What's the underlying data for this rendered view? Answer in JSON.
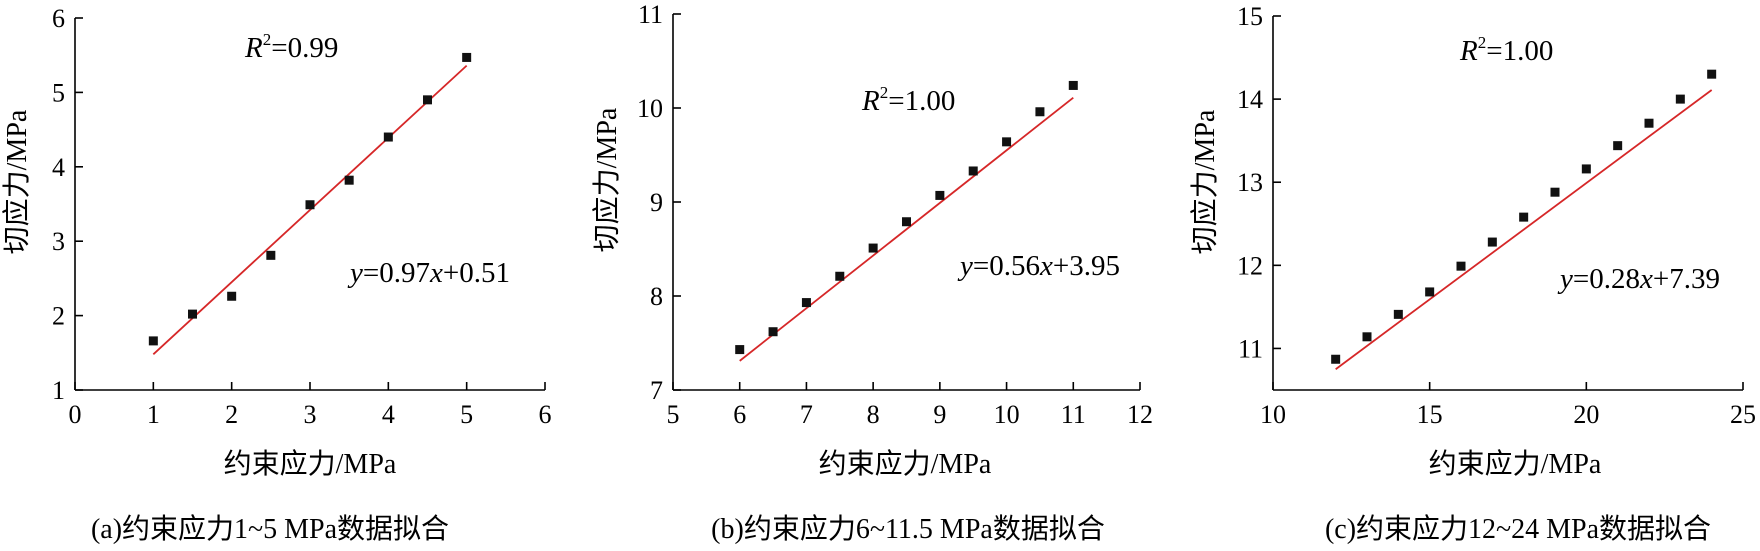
{
  "chart_data": [
    {
      "type": "scatter",
      "caption": "(a)约束应力1~5 MPa数据拟合",
      "xlabel": "约束应力/MPa",
      "ylabel": "切应力/MPa",
      "xlim": [
        0,
        6
      ],
      "ylim": [
        1,
        6
      ],
      "xticks": [
        "0",
        "1",
        "2",
        "3",
        "4",
        "5",
        "6"
      ],
      "yticks": [
        "1",
        "2",
        "3",
        "4",
        "5",
        "6"
      ],
      "x": [
        1,
        1.5,
        2,
        2.5,
        3,
        3.5,
        4,
        4.5,
        5
      ],
      "y": [
        1.66,
        2.02,
        2.26,
        2.81,
        3.49,
        3.82,
        4.4,
        4.9,
        5.47
      ],
      "fit": {
        "slope": 0.97,
        "intercept": 0.51,
        "x_range": [
          1,
          5
        ],
        "color": "#d62728"
      },
      "r2_prefix": "R",
      "r2_sup": "2",
      "r2_value": "=0.99",
      "eq_y": "y",
      "eq_mid": "=0.97",
      "eq_x": "x",
      "eq_tail": "+0.51",
      "grid": false
    },
    {
      "type": "scatter",
      "caption": "(b)约束应力6~11.5 MPa数据拟合",
      "xlabel": "约束应力/MPa",
      "ylabel": "切应力/MPa",
      "xlim": [
        5,
        12
      ],
      "ylim": [
        7,
        11
      ],
      "xticks": [
        "5",
        "6",
        "7",
        "8",
        "9",
        "10",
        "11",
        "12"
      ],
      "yticks": [
        "7",
        "8",
        "9",
        "10",
        "11"
      ],
      "x": [
        6,
        6.5,
        7,
        7.5,
        8,
        8.5,
        9,
        9.5,
        10,
        10.5,
        11
      ],
      "y": [
        7.43,
        7.62,
        7.93,
        8.21,
        8.51,
        8.79,
        9.07,
        9.33,
        9.64,
        9.96,
        10.24
      ],
      "fit": {
        "slope": 0.56,
        "intercept": 3.95,
        "x_range": [
          6,
          11
        ],
        "color": "#d62728"
      },
      "r2_prefix": "R",
      "r2_sup": "2",
      "r2_value": "=1.00",
      "eq_y": "y",
      "eq_mid": "=0.56",
      "eq_x": "x",
      "eq_tail": "+3.95",
      "grid": false
    },
    {
      "type": "scatter",
      "caption": "(c)约束应力12~24 MPa数据拟合",
      "xlabel": "约束应力/MPa",
      "ylabel": "切应力/MPa",
      "xlim": [
        10,
        25
      ],
      "ylim": [
        10.5,
        15
      ],
      "xticks": [
        "10",
        "15",
        "20",
        "25"
      ],
      "yticks": [
        "11",
        "12",
        "13",
        "14",
        "15"
      ],
      "x": [
        12,
        13,
        14,
        15,
        16,
        17,
        18,
        19,
        20,
        21,
        22,
        23,
        24
      ],
      "y": [
        10.87,
        11.14,
        11.41,
        11.68,
        11.99,
        12.28,
        12.58,
        12.88,
        13.16,
        13.44,
        13.71,
        14.0,
        14.3
      ],
      "fit": {
        "slope": 0.28,
        "intercept": 7.39,
        "x_range": [
          12,
          24
        ],
        "color": "#d62728"
      },
      "r2_prefix": "R",
      "r2_sup": "2",
      "r2_value": "=1.00",
      "eq_y": "y",
      "eq_mid": "=0.28",
      "eq_x": "x",
      "eq_tail": "+7.39",
      "grid": false
    }
  ]
}
